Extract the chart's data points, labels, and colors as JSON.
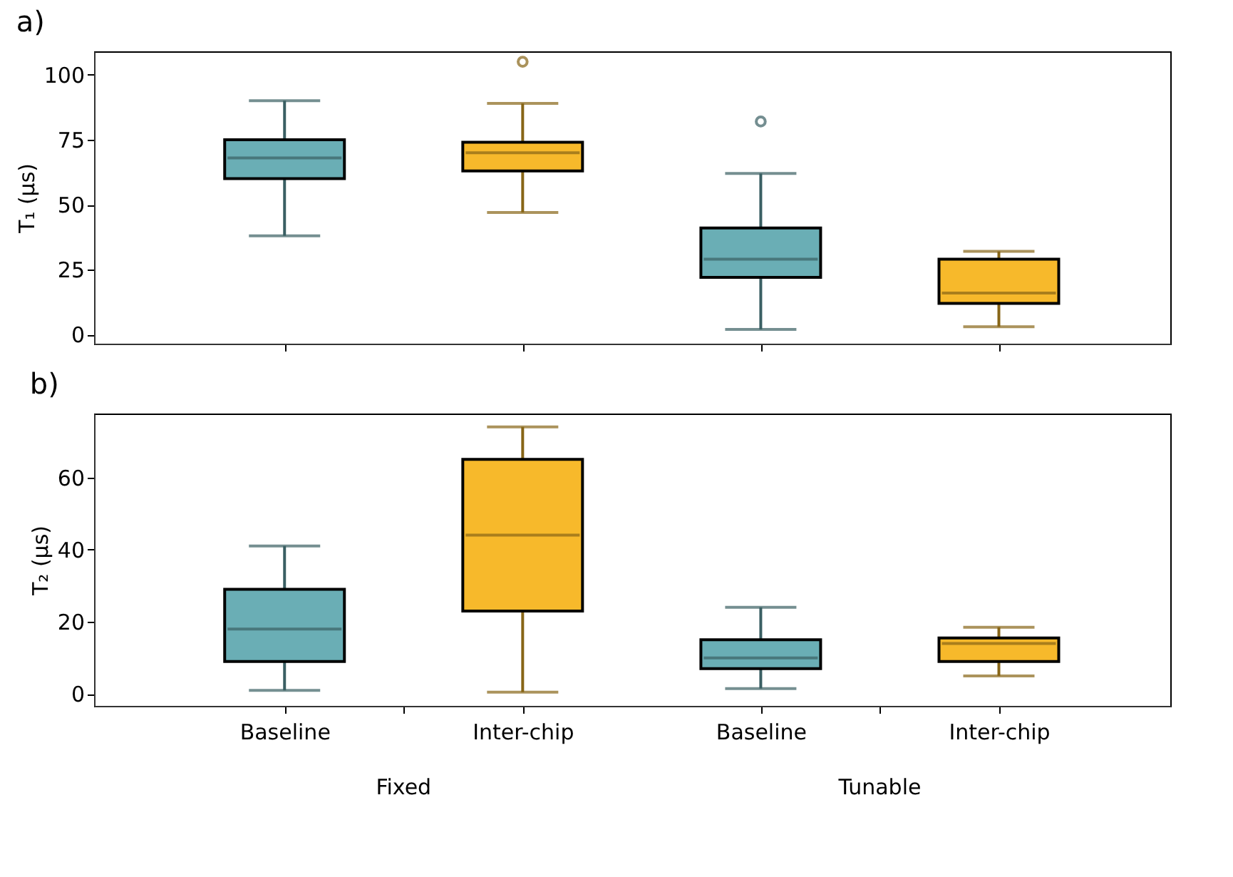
{
  "chart_data": [
    {
      "type": "box",
      "title": "a)",
      "ylabel": "T₁ (μs)",
      "categories": [
        null,
        null,
        null,
        null
      ],
      "colors": [
        "#6aaeb5",
        "#f7b92b",
        "#6aaeb5",
        "#f7b92b"
      ],
      "ylim": [
        -3.5,
        109
      ],
      "yticks": [
        0,
        25,
        50,
        75,
        100
      ],
      "tick_labels": "y",
      "grid": false,
      "legend": false,
      "boxes": [
        {
          "low": 38,
          "q1": 60,
          "median": 68,
          "q3": 75,
          "high": 90
        },
        {
          "low": 47,
          "q1": 63,
          "median": 70,
          "q3": 74,
          "high": 89,
          "outliers": [
            105
          ]
        },
        {
          "low": 2,
          "q1": 22,
          "median": 29,
          "q3": 41,
          "high": 62,
          "outliers": [
            82
          ]
        },
        {
          "low": 3,
          "q1": 12,
          "median": 16,
          "q3": 29,
          "high": 32
        }
      ]
    },
    {
      "type": "box",
      "title": "b)",
      "ylabel": "T₂ (μs)",
      "categories": [
        "Baseline",
        "Inter-chip",
        "Baseline",
        "Inter-chip"
      ],
      "colors": [
        "#6aaeb5",
        "#f7b92b",
        "#6aaeb5",
        "#f7b92b"
      ],
      "ylim": [
        -3.3,
        77.7
      ],
      "yticks": [
        0,
        20,
        40,
        60
      ],
      "grid": false,
      "legend": false,
      "annotations": [
        "Fixed",
        "Tunable"
      ],
      "boxes": [
        {
          "low": 1,
          "q1": 9,
          "median": 18,
          "q3": 29,
          "high": 41
        },
        {
          "low": 0.5,
          "q1": 23,
          "median": 44,
          "q3": 65,
          "high": 74
        },
        {
          "low": 1.5,
          "q1": 7,
          "median": 10,
          "q3": 15,
          "high": 24
        },
        {
          "low": 5,
          "q1": 9,
          "median": 14,
          "q3": 15.5,
          "high": 18.5
        }
      ]
    }
  ]
}
